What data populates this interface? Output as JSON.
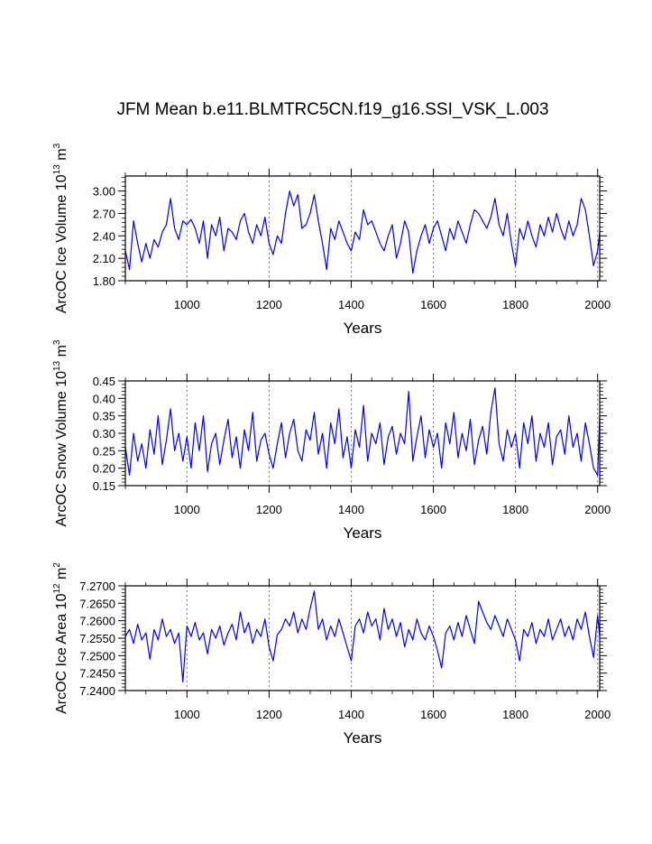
{
  "figure": {
    "title": "JFM Mean b.e11.BLMTRC5CN.f19_g16.SSI_VSK_L.003"
  },
  "chart_data": [
    {
      "type": "line",
      "id": "ice-volume",
      "title": "JFM Mean b.e11.BLMTRC5CN.f19_g16.SSI_VSK_L.003",
      "xlabel": "Years",
      "ylabel": {
        "main": "ArcOC Ice Volume 10",
        "exp": "13",
        "unit": " m",
        "unit_exp": "3"
      },
      "xlim": [
        850,
        2005
      ],
      "ylim": [
        1.8,
        3.2
      ],
      "xticks": [
        1000,
        1200,
        1400,
        1600,
        1800,
        2000
      ],
      "xtick_labels": [
        "1000",
        "1200",
        "1400",
        "1600",
        "1800",
        "2000"
      ],
      "yticks": [
        1.8,
        2.1,
        2.4,
        2.7,
        3.0
      ],
      "ytick_labels": [
        "1.80",
        "2.10",
        "2.40",
        "2.70",
        "3.00"
      ],
      "grid": "dashed vertical at x ticks",
      "series_color": "#0000ff",
      "series": [
        {
          "name": "ice volume",
          "x": [
            850,
            860,
            870,
            880,
            890,
            900,
            910,
            920,
            930,
            940,
            950,
            960,
            970,
            980,
            990,
            1000,
            1010,
            1020,
            1030,
            1040,
            1050,
            1060,
            1070,
            1080,
            1090,
            1100,
            1110,
            1120,
            1130,
            1140,
            1150,
            1160,
            1170,
            1180,
            1190,
            1200,
            1210,
            1220,
            1230,
            1240,
            1250,
            1260,
            1270,
            1280,
            1290,
            1300,
            1310,
            1320,
            1330,
            1340,
            1350,
            1360,
            1370,
            1380,
            1390,
            1400,
            1410,
            1420,
            1430,
            1440,
            1450,
            1460,
            1470,
            1480,
            1490,
            1500,
            1510,
            1520,
            1530,
            1540,
            1550,
            1560,
            1570,
            1580,
            1590,
            1600,
            1610,
            1620,
            1630,
            1640,
            1650,
            1660,
            1670,
            1680,
            1690,
            1700,
            1710,
            1720,
            1730,
            1740,
            1750,
            1760,
            1770,
            1780,
            1790,
            1800,
            1810,
            1820,
            1830,
            1840,
            1850,
            1860,
            1870,
            1880,
            1890,
            1900,
            1910,
            1920,
            1930,
            1940,
            1950,
            1960,
            1970,
            1980,
            1990,
            2000,
            2005
          ],
          "y": [
            2.2,
            1.95,
            2.6,
            2.3,
            2.05,
            2.3,
            2.1,
            2.35,
            2.25,
            2.45,
            2.55,
            2.9,
            2.5,
            2.35,
            2.6,
            2.55,
            2.62,
            2.5,
            2.3,
            2.6,
            2.1,
            2.55,
            2.4,
            2.65,
            2.2,
            2.5,
            2.45,
            2.35,
            2.6,
            2.7,
            2.45,
            2.3,
            2.55,
            2.4,
            2.65,
            2.3,
            2.15,
            2.4,
            2.3,
            2.7,
            3.0,
            2.8,
            2.95,
            2.5,
            2.55,
            2.7,
            2.95,
            2.6,
            2.3,
            1.95,
            2.5,
            2.35,
            2.6,
            2.45,
            2.3,
            2.2,
            2.45,
            2.35,
            2.75,
            2.55,
            2.6,
            2.45,
            2.3,
            2.2,
            2.4,
            2.55,
            2.1,
            2.3,
            2.6,
            2.45,
            1.9,
            2.2,
            2.4,
            2.55,
            2.3,
            2.5,
            2.6,
            2.4,
            2.2,
            2.5,
            2.35,
            2.6,
            2.45,
            2.3,
            2.55,
            2.75,
            2.7,
            2.6,
            2.5,
            2.65,
            2.9,
            2.55,
            2.4,
            2.7,
            2.3,
            2.0,
            2.5,
            2.35,
            2.6,
            2.4,
            2.25,
            2.55,
            2.4,
            2.65,
            2.45,
            2.7,
            2.5,
            2.35,
            2.6,
            2.4,
            2.55,
            2.9,
            2.75,
            2.4,
            2.0,
            2.2,
            2.45
          ]
        }
      ]
    },
    {
      "type": "line",
      "id": "snow-volume",
      "xlabel": "Years",
      "ylabel": {
        "main": "ArcOC Snow Volume 10",
        "exp": "13",
        "unit": " m",
        "unit_exp": "3"
      },
      "xlim": [
        850,
        2005
      ],
      "ylim": [
        0.15,
        0.45
      ],
      "xticks": [
        1000,
        1200,
        1400,
        1600,
        1800,
        2000
      ],
      "xtick_labels": [
        "1000",
        "1200",
        "1400",
        "1600",
        "1800",
        "2000"
      ],
      "yticks": [
        0.15,
        0.2,
        0.25,
        0.3,
        0.35,
        0.4,
        0.45
      ],
      "ytick_labels": [
        "0.15",
        "0.20",
        "0.25",
        "0.30",
        "0.35",
        "0.40",
        "0.45"
      ],
      "grid": "dashed vertical at x ticks",
      "series_color": "#0000ff",
      "series": [
        {
          "name": "snow volume",
          "x": [
            850,
            860,
            870,
            880,
            890,
            900,
            910,
            920,
            930,
            940,
            950,
            960,
            970,
            980,
            990,
            1000,
            1010,
            1020,
            1030,
            1040,
            1050,
            1060,
            1070,
            1080,
            1090,
            1100,
            1110,
            1120,
            1130,
            1140,
            1150,
            1160,
            1170,
            1180,
            1190,
            1200,
            1210,
            1220,
            1230,
            1240,
            1250,
            1260,
            1270,
            1280,
            1290,
            1300,
            1310,
            1320,
            1330,
            1340,
            1350,
            1360,
            1370,
            1380,
            1390,
            1400,
            1410,
            1420,
            1430,
            1440,
            1450,
            1460,
            1470,
            1480,
            1490,
            1500,
            1510,
            1520,
            1530,
            1540,
            1550,
            1560,
            1570,
            1580,
            1590,
            1600,
            1610,
            1620,
            1630,
            1640,
            1650,
            1660,
            1670,
            1680,
            1690,
            1700,
            1710,
            1720,
            1730,
            1740,
            1750,
            1760,
            1770,
            1780,
            1790,
            1800,
            1810,
            1820,
            1830,
            1840,
            1850,
            1860,
            1870,
            1880,
            1890,
            1900,
            1910,
            1920,
            1930,
            1940,
            1950,
            1960,
            1970,
            1980,
            1990,
            2000,
            2005
          ],
          "y": [
            0.26,
            0.18,
            0.3,
            0.22,
            0.27,
            0.2,
            0.31,
            0.24,
            0.35,
            0.21,
            0.28,
            0.37,
            0.25,
            0.3,
            0.22,
            0.29,
            0.2,
            0.33,
            0.25,
            0.35,
            0.19,
            0.27,
            0.3,
            0.21,
            0.28,
            0.34,
            0.23,
            0.29,
            0.2,
            0.31,
            0.25,
            0.36,
            0.22,
            0.28,
            0.3,
            0.24,
            0.2,
            0.27,
            0.33,
            0.23,
            0.3,
            0.34,
            0.25,
            0.22,
            0.31,
            0.28,
            0.36,
            0.24,
            0.3,
            0.2,
            0.33,
            0.27,
            0.37,
            0.23,
            0.29,
            0.2,
            0.31,
            0.26,
            0.38,
            0.22,
            0.3,
            0.27,
            0.33,
            0.21,
            0.29,
            0.32,
            0.24,
            0.3,
            0.27,
            0.42,
            0.22,
            0.29,
            0.35,
            0.23,
            0.31,
            0.26,
            0.3,
            0.2,
            0.33,
            0.27,
            0.36,
            0.23,
            0.3,
            0.25,
            0.34,
            0.21,
            0.28,
            0.32,
            0.24,
            0.36,
            0.43,
            0.27,
            0.22,
            0.31,
            0.26,
            0.3,
            0.2,
            0.33,
            0.27,
            0.35,
            0.22,
            0.3,
            0.26,
            0.33,
            0.21,
            0.29,
            0.31,
            0.24,
            0.35,
            0.26,
            0.3,
            0.22,
            0.33,
            0.27,
            0.2,
            0.18,
            0.35
          ]
        }
      ]
    },
    {
      "type": "line",
      "id": "ice-area",
      "xlabel": "Years",
      "ylabel": {
        "main": "ArcOC Ice Area 10",
        "exp": "12",
        "unit": " m",
        "unit_exp": "2"
      },
      "xlim": [
        850,
        2005
      ],
      "ylim": [
        7.24,
        7.27
      ],
      "xticks": [
        1000,
        1200,
        1400,
        1600,
        1800,
        2000
      ],
      "xtick_labels": [
        "1000",
        "1200",
        "1400",
        "1600",
        "1800",
        "2000"
      ],
      "yticks": [
        7.24,
        7.245,
        7.25,
        7.255,
        7.26,
        7.265,
        7.27
      ],
      "ytick_labels": [
        "7.2400",
        "7.2450",
        "7.2500",
        "7.2550",
        "7.2600",
        "7.2650",
        "7.2700"
      ],
      "grid": "dashed vertical at x ticks",
      "series_color": "#0000ff",
      "series": [
        {
          "name": "ice area",
          "x": [
            850,
            860,
            870,
            880,
            890,
            900,
            910,
            920,
            930,
            940,
            950,
            960,
            970,
            980,
            990,
            1000,
            1010,
            1020,
            1030,
            1040,
            1050,
            1060,
            1070,
            1080,
            1090,
            1100,
            1110,
            1120,
            1130,
            1140,
            1150,
            1160,
            1170,
            1180,
            1190,
            1200,
            1210,
            1220,
            1230,
            1240,
            1250,
            1260,
            1270,
            1280,
            1290,
            1300,
            1310,
            1320,
            1330,
            1340,
            1350,
            1360,
            1370,
            1380,
            1390,
            1400,
            1410,
            1420,
            1430,
            1440,
            1450,
            1460,
            1470,
            1480,
            1490,
            1500,
            1510,
            1520,
            1530,
            1540,
            1550,
            1560,
            1570,
            1580,
            1590,
            1600,
            1610,
            1620,
            1630,
            1640,
            1650,
            1660,
            1670,
            1680,
            1690,
            1700,
            1710,
            1720,
            1730,
            1740,
            1750,
            1760,
            1770,
            1780,
            1790,
            1800,
            1810,
            1820,
            1830,
            1840,
            1850,
            1860,
            1870,
            1880,
            1890,
            1900,
            1910,
            1920,
            1930,
            1940,
            1950,
            1960,
            1970,
            1980,
            1990,
            2000,
            2005
          ],
          "y": [
            7.2555,
            7.2575,
            7.2535,
            7.259,
            7.2545,
            7.2565,
            7.249,
            7.2575,
            7.2545,
            7.2605,
            7.2555,
            7.2575,
            7.2535,
            7.2565,
            7.2425,
            7.2585,
            7.2555,
            7.2595,
            7.2545,
            7.2565,
            7.2505,
            7.2575,
            7.255,
            7.2585,
            7.253,
            7.2565,
            7.259,
            7.2545,
            7.2625,
            7.2565,
            7.2595,
            7.2535,
            7.2575,
            7.2555,
            7.2605,
            7.2525,
            7.2485,
            7.256,
            7.2575,
            7.2605,
            7.2585,
            7.2625,
            7.2565,
            7.2605,
            7.2575,
            7.2635,
            7.2685,
            7.2575,
            7.2605,
            7.2545,
            7.2585,
            7.2555,
            7.2605,
            7.2565,
            7.2525,
            7.2485,
            7.2585,
            7.2605,
            7.2565,
            7.2625,
            7.2585,
            7.2605,
            7.2545,
            7.2635,
            7.2575,
            7.2605,
            7.2555,
            7.2595,
            7.2525,
            7.2575,
            7.2545,
            7.2605,
            7.2565,
            7.2545,
            7.2585,
            7.2555,
            7.2515,
            7.2465,
            7.2565,
            7.2585,
            7.2545,
            7.2595,
            7.2555,
            7.2615,
            7.2575,
            7.2535,
            7.2655,
            7.2625,
            7.2595,
            7.2575,
            7.2615,
            7.2585,
            7.2555,
            7.2605,
            7.2575,
            7.2545,
            7.2485,
            7.2575,
            7.2555,
            7.2595,
            7.2535,
            7.2575,
            7.2555,
            7.2605,
            7.2545,
            7.2575,
            7.2605,
            7.2555,
            7.2585,
            7.2545,
            7.2605,
            7.2575,
            7.2625,
            7.2555,
            7.2495,
            7.2615,
            7.2555
          ]
        }
      ]
    }
  ]
}
